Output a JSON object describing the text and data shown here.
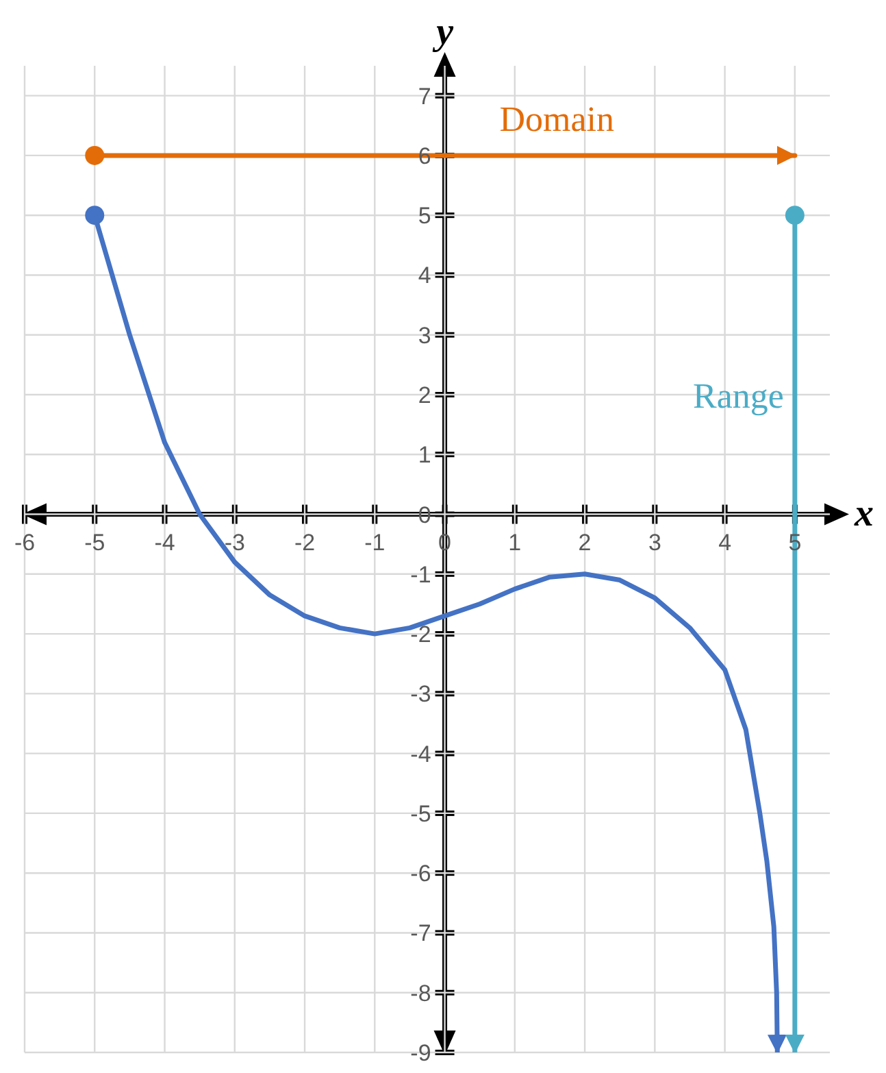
{
  "chart_data": {
    "type": "line",
    "xlabel": "x",
    "ylabel": "y",
    "xlim": [
      -6,
      5.5
    ],
    "ylim": [
      -9,
      7.5
    ],
    "xticks": [
      -6,
      -5,
      -4,
      -3,
      -2,
      -1,
      0,
      1,
      2,
      3,
      4,
      5
    ],
    "yticks": [
      -9,
      -8,
      -7,
      -6,
      -5,
      -4,
      -3,
      -2,
      -1,
      0,
      1,
      2,
      3,
      4,
      5,
      6,
      7
    ],
    "grid": true,
    "line_style": "solid",
    "series": [
      {
        "color": "#4472c4",
        "x": [
          -5,
          -4.5,
          -4,
          -3.5,
          -3,
          -2.5,
          -2,
          -1.5,
          -1,
          -0.5,
          0,
          0.5,
          1,
          1.5,
          2,
          2.5,
          3,
          3.5,
          4,
          4.3,
          4.5,
          4.6,
          4.7,
          4.74,
          4.75
        ],
        "values": [
          5,
          3,
          1.2,
          0,
          -0.8,
          -1.35,
          -1.7,
          -1.9,
          -2,
          -1.9,
          -1.7,
          -1.5,
          -1.25,
          -1.05,
          -1,
          -1.1,
          -1.4,
          -1.9,
          -2.6,
          -3.6,
          -5,
          -5.8,
          -6.9,
          -8,
          -9
        ]
      },
      {
        "name": "Domain",
        "color": "#e36c09",
        "x": [
          -5,
          5
        ],
        "values": [
          6,
          6
        ]
      },
      {
        "name": "Range",
        "color": "#4bacc6",
        "x": [
          5,
          5
        ],
        "values": [
          5,
          -9
        ]
      }
    ]
  }
}
